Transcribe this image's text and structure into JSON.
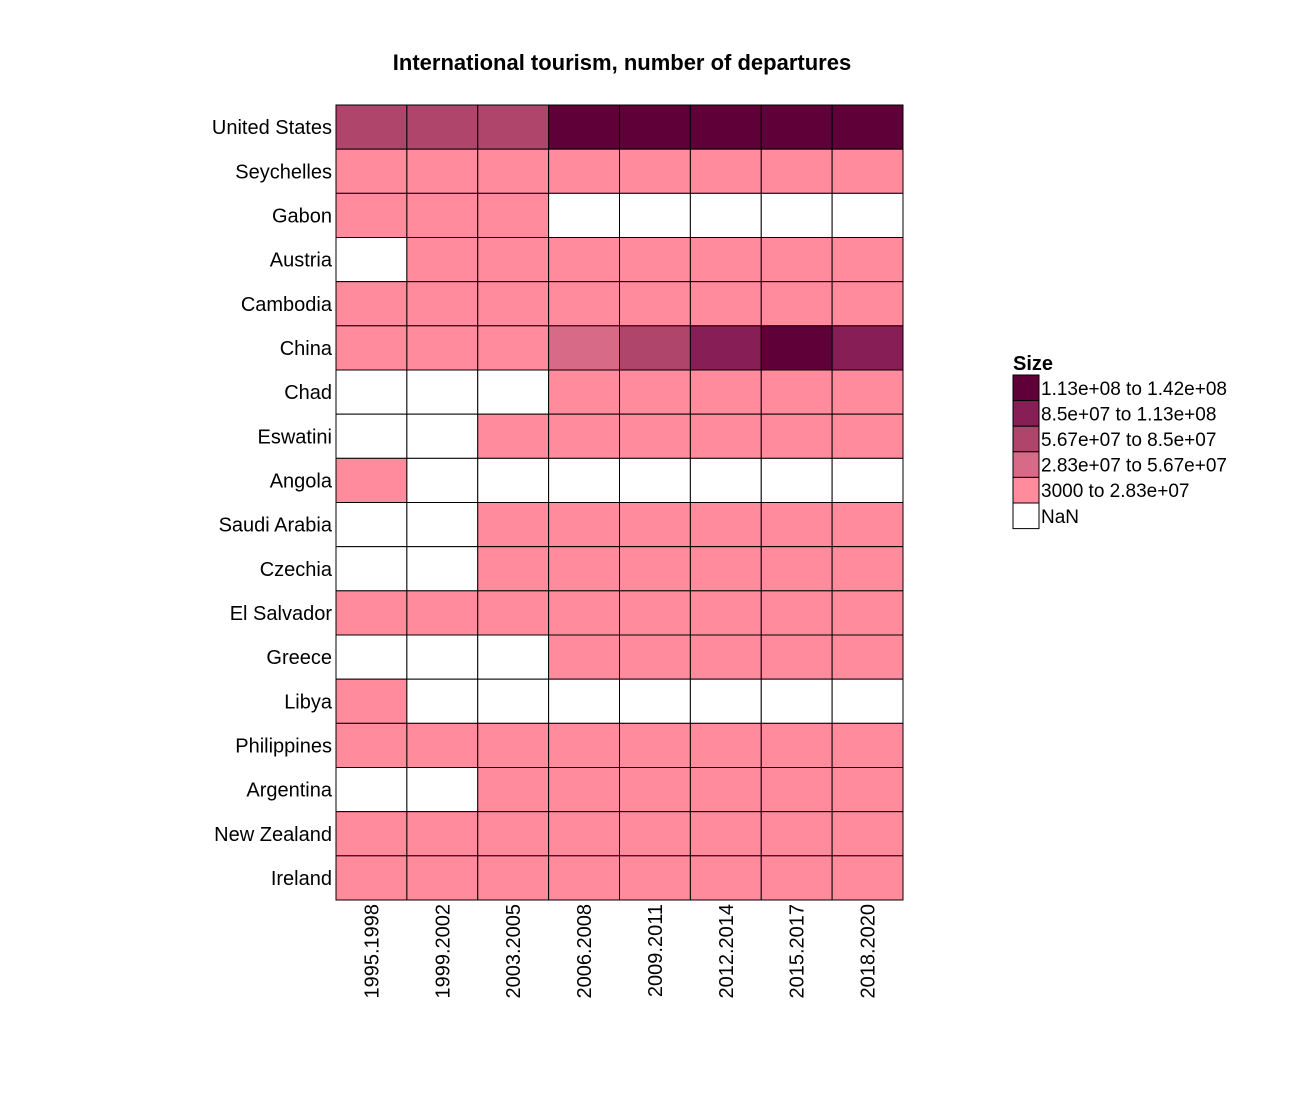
{
  "chart_data": {
    "type": "heatmap",
    "title": "International tourism, number of departures",
    "xlabel": "",
    "ylabel": "",
    "x": [
      "1995.1998",
      "1999.2002",
      "2003.2005",
      "2006.2008",
      "2009.2011",
      "2012.2014",
      "2015.2017",
      "2018.2020"
    ],
    "y": [
      "United States",
      "Seychelles",
      "Gabon",
      "Austria",
      "Cambodia",
      "China",
      "Chad",
      "Eswatini",
      "Angola",
      "Saudi Arabia",
      "Czechia",
      "El Salvador",
      "Greece",
      "Libya",
      "Philippines",
      "Argentina",
      "New Zealand",
      "Ireland"
    ],
    "bins": [
      {
        "label": "1.13e+08 to 1.42e+08",
        "color": "#5f0038"
      },
      {
        "label": "8.5e+07 to 1.13e+08",
        "color": "#871f56"
      },
      {
        "label": "5.67e+07 to 8.5e+07",
        "color": "#b0456c"
      },
      {
        "label": "2.83e+07 to 5.67e+07",
        "color": "#d76a87"
      },
      {
        "label": "3000 to 2.83e+07",
        "color": "#ff8b9c"
      },
      {
        "label": "NaN",
        "color": "#ffffff"
      }
    ],
    "cell_bins": [
      [
        2,
        2,
        2,
        0,
        0,
        0,
        0,
        0
      ],
      [
        4,
        4,
        4,
        4,
        4,
        4,
        4,
        4
      ],
      [
        4,
        4,
        4,
        5,
        5,
        5,
        5,
        5
      ],
      [
        5,
        4,
        4,
        4,
        4,
        4,
        4,
        4
      ],
      [
        4,
        4,
        4,
        4,
        4,
        4,
        4,
        4
      ],
      [
        4,
        4,
        4,
        3,
        2,
        1,
        0,
        1
      ],
      [
        5,
        5,
        5,
        4,
        4,
        4,
        4,
        4
      ],
      [
        5,
        5,
        4,
        4,
        4,
        4,
        4,
        4
      ],
      [
        4,
        5,
        5,
        5,
        5,
        5,
        5,
        5
      ],
      [
        5,
        5,
        4,
        4,
        4,
        4,
        4,
        4
      ],
      [
        5,
        5,
        4,
        4,
        4,
        4,
        4,
        4
      ],
      [
        4,
        4,
        4,
        4,
        4,
        4,
        4,
        4
      ],
      [
        5,
        5,
        5,
        4,
        4,
        4,
        4,
        4
      ],
      [
        4,
        5,
        5,
        5,
        5,
        5,
        5,
        5
      ],
      [
        4,
        4,
        4,
        4,
        4,
        4,
        4,
        4
      ],
      [
        5,
        5,
        4,
        4,
        4,
        4,
        4,
        4
      ],
      [
        4,
        4,
        4,
        4,
        4,
        4,
        4,
        4
      ],
      [
        4,
        4,
        4,
        4,
        4,
        4,
        4,
        4
      ]
    ],
    "legend": {
      "title": "Size",
      "position": "right"
    },
    "grid": false
  }
}
